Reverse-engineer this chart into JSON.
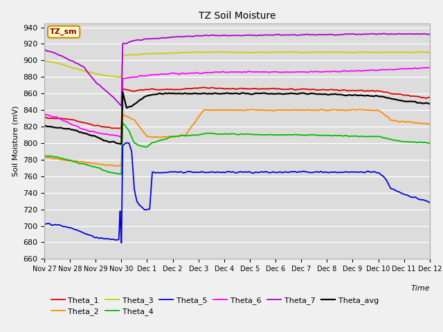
{
  "title": "TZ Soil Moisture",
  "xlabel": "Time",
  "ylabel": "Soil Moisture (mV)",
  "ylim": [
    660,
    945
  ],
  "background_color": "#dcdcdc",
  "fig_facecolor": "#f0f0f0",
  "legend_label": "TZ_sm",
  "legend_label_color": "#8B0000",
  "legend_box_face": "#ffffcc",
  "legend_box_edge": "#cc8800",
  "x_tick_labels": [
    "Nov 27",
    "Nov 28",
    "Nov 29",
    "Nov 30",
    "Dec 1",
    "Dec 2",
    "Dec 3",
    "Dec 4",
    "Dec 5",
    "Dec 6",
    "Dec 7",
    "Dec 8",
    "Dec 9",
    "Dec 10",
    "Dec 11",
    "Dec 12"
  ],
  "series_colors": {
    "Theta_1": "#dd0000",
    "Theta_2": "#ff8800",
    "Theta_3": "#cccc00",
    "Theta_4": "#00bb00",
    "Theta_5": "#0000dd",
    "Theta_6": "#ff00ff",
    "Theta_7": "#aa00cc",
    "Theta_avg": "#000000"
  }
}
